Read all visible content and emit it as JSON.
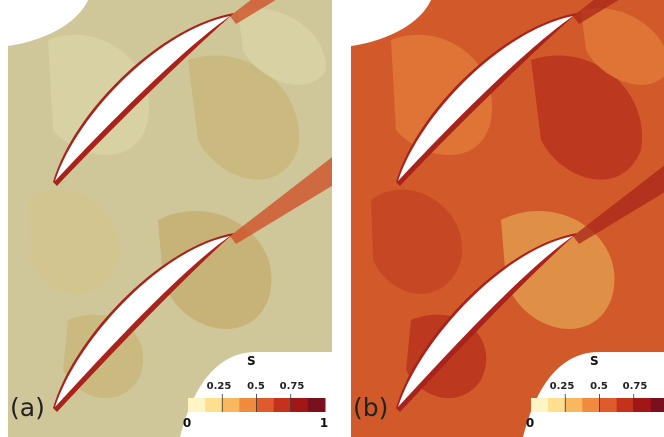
{
  "panels": [
    {
      "id": "a",
      "label": "(a)",
      "base_color": "#cfc79a",
      "patch_colors": [
        "#d8d2a6",
        "#c9b77b",
        "#d2c48e",
        "#c5ae72"
      ],
      "wake_color": "#cf4a23",
      "colorbar": {
        "title": "S",
        "ticks": [
          "0.25",
          "0.5",
          "0.75"
        ],
        "min_label": "0",
        "max_label": "1"
      }
    },
    {
      "id": "b",
      "label": "(b)",
      "base_color": "#d25a2a",
      "patch_colors": [
        "#e07a3a",
        "#b8321c",
        "#c44422",
        "#e39a4b"
      ],
      "wake_color": "#a8261a",
      "colorbar": {
        "title": "S",
        "ticks": [
          "0.25",
          "0.5",
          "0.75"
        ],
        "min_label": "0",
        "max_label": ""
      }
    }
  ],
  "colorbar_colors": [
    "#fff4c4",
    "#fddf8e",
    "#f9b860",
    "#ef8a3e",
    "#df5b2b",
    "#c5321c",
    "#a21617",
    "#7a0f1e"
  ]
}
